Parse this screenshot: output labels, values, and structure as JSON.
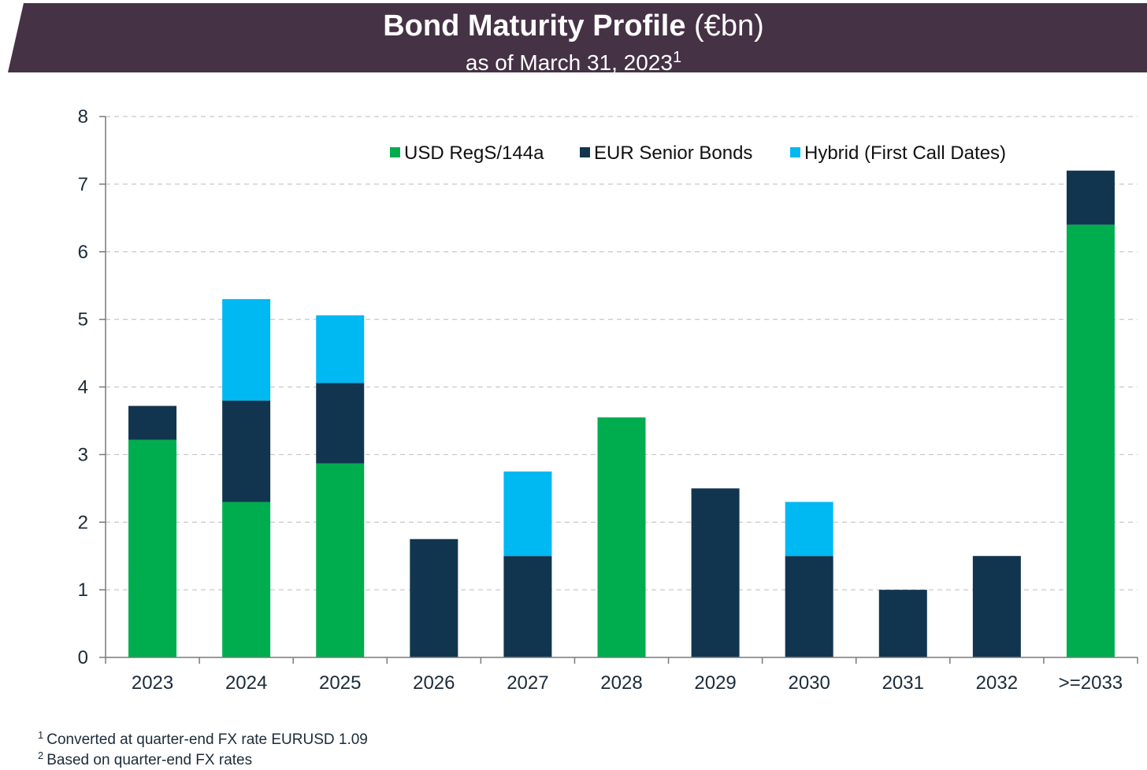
{
  "title": {
    "main": "Bond Maturity Profile",
    "unit": "(€bn)",
    "subtitle": "as of March 31, 2023",
    "subtitle_note": "1"
  },
  "colors": {
    "banner": "#453245",
    "usd": "#00ad4e",
    "eur": "#12354f",
    "hybrid": "#00b8f2",
    "grid": "#c8c8c8",
    "axis": "#7a7a7a",
    "text": "#1c2b3a"
  },
  "chart_data": {
    "type": "bar",
    "stacked": true,
    "categories": [
      "2023",
      "2024",
      "2025",
      "2026",
      "2027",
      "2028",
      "2029",
      "2030",
      "2031",
      "2032",
      ">=2033"
    ],
    "series": [
      {
        "name": "USD RegS/144a",
        "color": "#00ad4e",
        "values": [
          3.22,
          2.3,
          2.87,
          0,
          0,
          3.55,
          0,
          0,
          0,
          0,
          6.4
        ]
      },
      {
        "name": "EUR Senior Bonds",
        "color": "#12354f",
        "values": [
          0.5,
          1.5,
          1.19,
          1.75,
          1.5,
          0,
          2.5,
          1.5,
          1.0,
          1.5,
          0.8
        ]
      },
      {
        "name": "Hybrid (First Call Dates)",
        "color": "#00b8f2",
        "values": [
          0,
          1.5,
          1.0,
          0,
          1.25,
          0,
          0,
          0.8,
          0,
          0,
          0
        ]
      }
    ],
    "ylim": [
      0,
      8
    ],
    "yticks": [
      "0",
      "1",
      "2",
      "3",
      "4",
      "5",
      "6",
      "7",
      "8"
    ],
    "grid": true,
    "legend_position": "top-right"
  },
  "footnotes": [
    {
      "mark": "1",
      "text": "Converted at quarter-end FX rate EURUSD 1.09"
    },
    {
      "mark": "2",
      "text": "Based on quarter-end FX rates"
    }
  ]
}
